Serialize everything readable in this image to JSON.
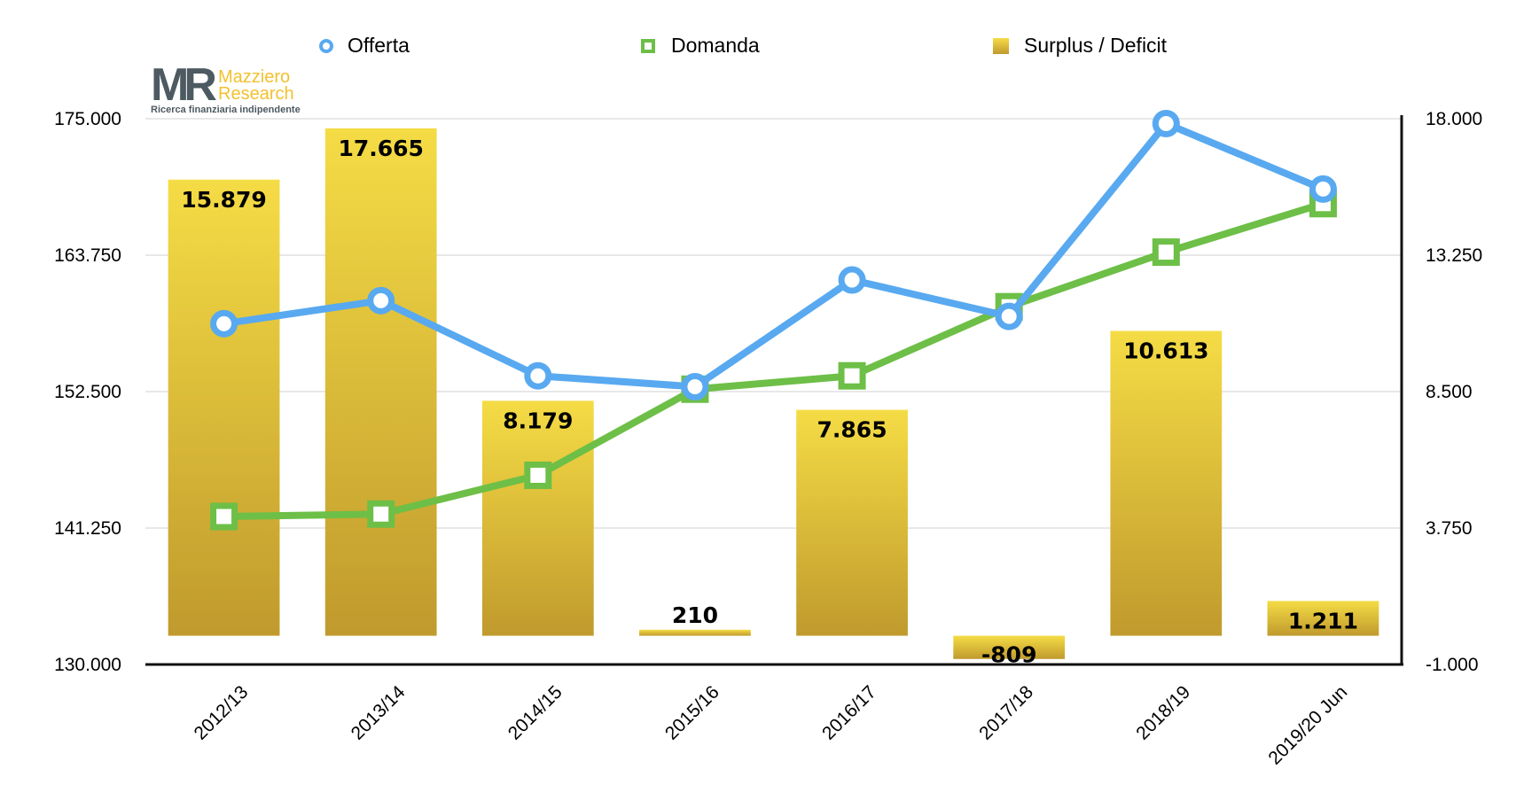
{
  "logo": {
    "mark": "MR",
    "name_line1": "Mazziero",
    "name_line2": "Research",
    "tagline": "Ricerca finanziaria indipendente"
  },
  "chart_data": {
    "type": "bar+line",
    "categories": [
      "2012/13",
      "2013/14",
      "2014/15",
      "2015/16",
      "2016/17",
      "2017/18",
      "2018/19",
      "2019/20 Jun"
    ],
    "series": [
      {
        "name": "Offerta",
        "type": "line",
        "axis": "left",
        "color": "#58a9f0",
        "marker": "circle",
        "values": [
          158100,
          160000,
          153800,
          152900,
          161700,
          158700,
          174600,
          169200
        ]
      },
      {
        "name": "Domanda",
        "type": "line",
        "axis": "left",
        "color": "#6dbf47",
        "marker": "square",
        "values": [
          142200,
          142400,
          145600,
          152700,
          153800,
          159500,
          164000,
          168000
        ]
      },
      {
        "name": "Surplus / Deficit",
        "type": "bar",
        "axis": "right",
        "color": "#e0bb35",
        "values": [
          15879,
          17665,
          8179,
          210,
          7865,
          -809,
          10613,
          1211
        ],
        "labels": [
          "15.879",
          "17.665",
          "8.179",
          "210",
          "7.865",
          "-809",
          "10.613",
          "1.211"
        ]
      }
    ],
    "left_axis": {
      "range": [
        130000,
        175000
      ],
      "ticks": [
        "130.000",
        "141.250",
        "152.500",
        "163.750",
        "175.000"
      ]
    },
    "right_axis": {
      "range": [
        -1000,
        18000
      ],
      "ticks": [
        "-1.000",
        "3.750",
        "8.500",
        "13.250",
        "18.000"
      ]
    },
    "grid": true,
    "legend_position": "top"
  }
}
